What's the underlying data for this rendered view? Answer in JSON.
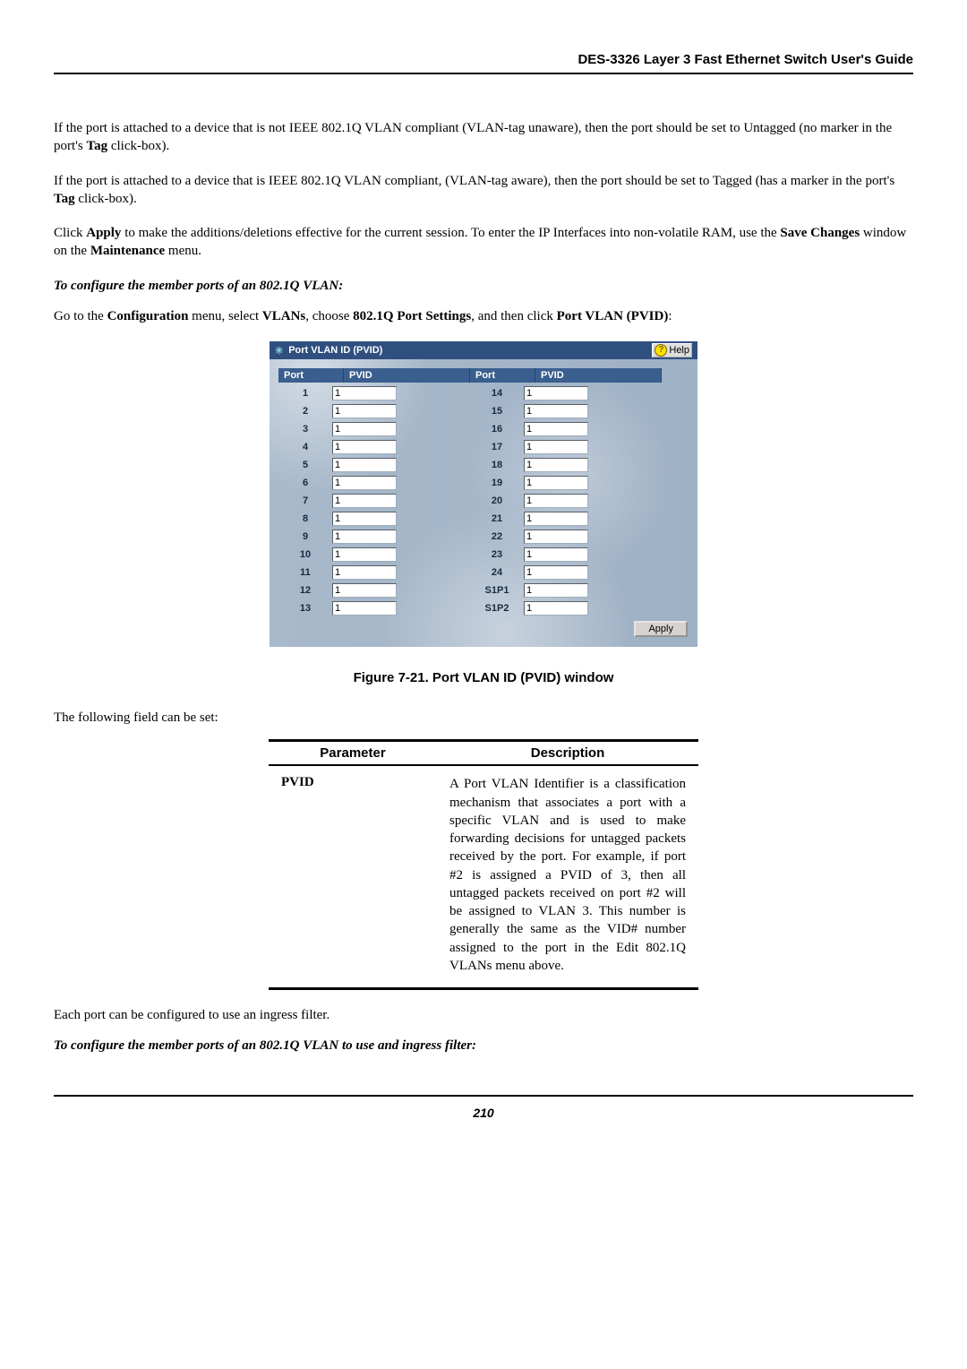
{
  "header": {
    "title": "DES-3326 Layer 3 Fast Ethernet Switch User's Guide"
  },
  "body": {
    "p1_pre": "If the port is attached to a device that is not IEEE 802.1Q VLAN compliant (VLAN-tag unaware), then the port should be set to Untagged (no marker in the port's ",
    "tag": "Tag",
    "p1_post": " click-box).",
    "p2_pre": "If the port is attached to a device that is IEEE 802.1Q VLAN compliant, (VLAN-tag aware), then the port should be set to Tagged (has a marker in the port's ",
    "p2_post": " click-box).",
    "p3_a": "Click ",
    "apply": "Apply",
    "p3_b": " to make the additions/deletions effective for the current session. To enter the IP Interfaces into non-volatile RAM, use the ",
    "save_changes": "Save Changes",
    "p3_c": " window on the ",
    "maintenance": "Maintenance",
    "p3_d": " menu.",
    "sub1": "To configure the member ports of an 802.1Q VLAN:",
    "p4_a": "Go to the ",
    "configuration": "Configuration",
    "p4_b": " menu, select ",
    "vlans": "VLANs",
    "p4_c": ", choose ",
    "q_port_settings": "802.1Q Port Settings",
    "p4_d": ", and then click ",
    "port_vlan_pvid": "Port VLAN (PVID)",
    "p4_e": ":",
    "following_field": "The following field can be set:",
    "each_port": "Each port can be configured to use an ingress filter.",
    "sub2": "To configure the member ports of an 802.1Q VLAN to use and ingress filter:"
  },
  "window": {
    "title": "Port VLAN ID (PVID)",
    "help_label": "Help",
    "col_port": "Port",
    "col_pvid": "PVID",
    "left": [
      {
        "port": "1",
        "pvid": "1"
      },
      {
        "port": "2",
        "pvid": "1"
      },
      {
        "port": "3",
        "pvid": "1"
      },
      {
        "port": "4",
        "pvid": "1"
      },
      {
        "port": "5",
        "pvid": "1"
      },
      {
        "port": "6",
        "pvid": "1"
      },
      {
        "port": "7",
        "pvid": "1"
      },
      {
        "port": "8",
        "pvid": "1"
      },
      {
        "port": "9",
        "pvid": "1"
      },
      {
        "port": "10",
        "pvid": "1"
      },
      {
        "port": "11",
        "pvid": "1"
      },
      {
        "port": "12",
        "pvid": "1"
      },
      {
        "port": "13",
        "pvid": "1"
      }
    ],
    "right": [
      {
        "port": "14",
        "pvid": "1"
      },
      {
        "port": "15",
        "pvid": "1"
      },
      {
        "port": "16",
        "pvid": "1"
      },
      {
        "port": "17",
        "pvid": "1"
      },
      {
        "port": "18",
        "pvid": "1"
      },
      {
        "port": "19",
        "pvid": "1"
      },
      {
        "port": "20",
        "pvid": "1"
      },
      {
        "port": "21",
        "pvid": "1"
      },
      {
        "port": "22",
        "pvid": "1"
      },
      {
        "port": "23",
        "pvid": "1"
      },
      {
        "port": "24",
        "pvid": "1"
      },
      {
        "port": "S1P1",
        "pvid": "1"
      },
      {
        "port": "S1P2",
        "pvid": "1"
      }
    ],
    "apply_label": "Apply"
  },
  "caption": "Figure 7-21.  Port VLAN ID (PVID) window",
  "table": {
    "h_param": "Parameter",
    "h_desc": "Description",
    "row_param": "PVID",
    "row_desc": "A Port VLAN Identifier is a classification mechanism that associates a port with a specific VLAN and is used to make forwarding decisions for untagged packets received by the port. For example, if port #2 is assigned a PVID of 3, then all untagged packets received on port #2 will be assigned to VLAN 3. This number is generally the same as the VID# number assigned to the port in the Edit 802.1Q VLANs menu above."
  },
  "footer": {
    "page": "210"
  },
  "colors": {
    "titlebar": "#2f4f7f",
    "col_header": "#3a5f8f",
    "panel_bg": "#a8b9cb"
  }
}
